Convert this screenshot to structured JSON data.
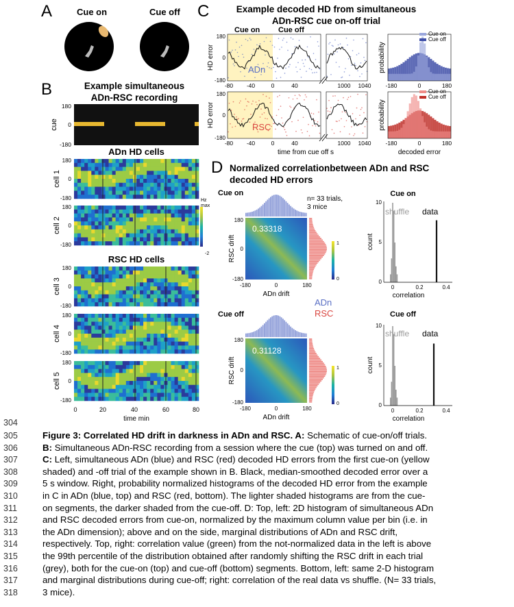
{
  "panels": {
    "A": {
      "letter": "A",
      "cue_on_label": "Cue on",
      "cue_off_label": "Cue off"
    },
    "B": {
      "letter": "B",
      "title_line1": "Example simultaneous",
      "title_line2": "ADn-RSC recording",
      "cue_label": "cue",
      "adn_heading": "ADn HD cells",
      "rsc_heading": "RSC HD cells",
      "cells": [
        "cell 1",
        "cell 2",
        "cell 3",
        "cell 4",
        "cell 5"
      ],
      "y_ticks": [
        "180",
        "0",
        "-180"
      ],
      "x_ticks": [
        "0",
        "20",
        "40",
        "60",
        "80"
      ],
      "x_label": "time min",
      "colorbar_top": "Hz",
      "colorbar_top2": "max",
      "colorbar_bottom": "-2"
    },
    "C": {
      "letter": "C",
      "title_line1": "Example decoded HD from simultaneous",
      "title_line2": "ADn-RSC cue on-off trial",
      "cue_on_label": "Cue on",
      "cue_off_label": "Cue off",
      "y_label": "HD error",
      "adn_label": "ADn",
      "rsc_label": "RSC",
      "y_ticks": [
        "180",
        "0",
        "-180"
      ],
      "x_ticks_left": [
        "-80",
        "-40",
        "0",
        "40"
      ],
      "x_ticks_right": [
        "1000",
        "1040"
      ],
      "x_label": "time from cue off s",
      "hist_y_label": "probability",
      "hist_x_ticks": [
        "-180",
        "0",
        "180"
      ],
      "hist_x_label": "decoded error",
      "legend_on": "Cue on",
      "legend_off": "Cue off"
    },
    "D": {
      "letter": "D",
      "title_line1": "Normalized correlationbetween ADn and RSC",
      "title_line2": "decoded HD errors",
      "cue_on_label": "Cue on",
      "cue_off_label": "Cue off",
      "n_label_line1": "n= 33 trials,",
      "n_label_line2": "3 mice",
      "corr_on": "0.33318",
      "corr_off": "0.31128",
      "heat_y_label": "RSC drift",
      "heat_x_label": "ADn drift",
      "heat_ticks": [
        "180",
        "0",
        "-180"
      ],
      "heat_x_ticks": [
        "-180",
        "0",
        "180"
      ],
      "cbar_ticks": [
        "1",
        "0"
      ],
      "legend_adn": "ADn",
      "legend_rsc": "RSC",
      "bar_title_on": "Cue on",
      "bar_title_off": "Cue off",
      "shuffle_label": "shuffle",
      "data_label": "data",
      "count_label": "count",
      "corr_label": "correlation",
      "count_ticks": [
        "10",
        "5",
        "0"
      ],
      "corr_ticks": [
        "0",
        "0.2",
        "0.4"
      ],
      "line_number": "304"
    }
  },
  "colors": {
    "adn": "#5a6fc4",
    "rsc": "#d9453f",
    "cue_yellow": "#fff3c0",
    "cue_bar": "#e8b830",
    "shuffle_gray": "#9a9a9a"
  },
  "caption": [
    {
      "num": "305",
      "bold": "Figure 3: Correlated HD drift in darkness in ADn and RSC. A:",
      "text": " Schematic of cue-on/off trials."
    },
    {
      "num": "306",
      "bold": "B:",
      "text": " Simultaneous ADn-RSC recording from a session where the cue (top) was turned on and off."
    },
    {
      "num": "307",
      "bold": "C:",
      "text": " Left, simultaneous ADn (blue) and RSC (red) decoded HD errors from the first cue-on (yellow"
    },
    {
      "num": "308",
      "bold": "",
      "text": "shaded) and -off trial of the example shown in B. Black, median-smoothed decoded error over a"
    },
    {
      "num": "309",
      "bold": "",
      "text": "5 s window. Right, probability normalized histograms of the decoded HD error from the example"
    },
    {
      "num": "310",
      "bold": "",
      "text": "in C in ADn (blue, top) and RSC (red, bottom). The lighter shaded histograms are from the cue-"
    },
    {
      "num": "311",
      "bold": "",
      "text": "on segments, the darker shaded from the cue-off. D: Top, left: 2D histogram of simultaneous ADn"
    },
    {
      "num": "312",
      "bold": "",
      "text": "and RSC decoded errors from cue-on, normalized by the maximum column value per bin (i.e. in"
    },
    {
      "num": "313",
      "bold": "",
      "text": "the ADn dimension); above and on the side, marginal distributions of ADn and RSC drift,"
    },
    {
      "num": "314",
      "bold": "",
      "text": "respectively. Top, right: correlation value (green) from the not-normalized data in the left is above"
    },
    {
      "num": "315",
      "bold": "",
      "text": "the 99th percentile of the distribution obtained after randomly shifting the RSC drift in each trial"
    },
    {
      "num": "316",
      "bold": "",
      "text": "(grey), both for the cue-on (top) and cue-off (bottom) segments. Bottom, left: same 2-D histogram"
    },
    {
      "num": "317",
      "bold": "",
      "text": "and marginal distributions during cue-off; right: correlation of the real data vs shuffle. (N= 33 trials,"
    },
    {
      "num": "318",
      "bold": "",
      "text": "3 mice)."
    }
  ]
}
